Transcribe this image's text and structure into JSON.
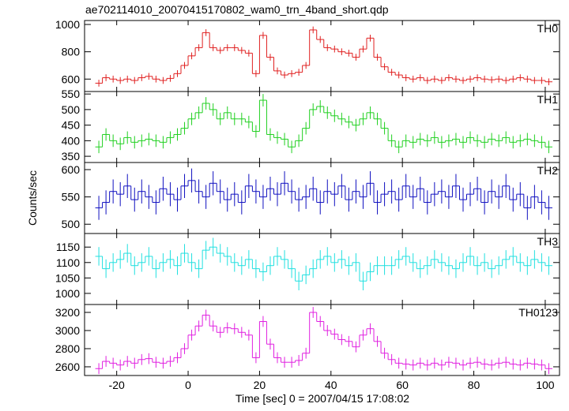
{
  "chart_data": {
    "type": "step",
    "title": "ae702114010_20070415170802_wam0_trn_4band_short.qdp",
    "ylabel": "Counts/sec",
    "xlabel": "Time [sec] 0 = 2007/04/15 17:08:02",
    "x": [
      -25,
      -23,
      -21,
      -19,
      -17,
      -15,
      -13,
      -11,
      -9,
      -7,
      -5,
      -3,
      -1,
      1,
      3,
      5,
      7,
      9,
      11,
      13,
      15,
      17,
      19,
      21,
      23,
      25,
      27,
      29,
      31,
      33,
      35,
      37,
      39,
      41,
      43,
      45,
      47,
      49,
      51,
      53,
      55,
      57,
      59,
      61,
      63,
      65,
      67,
      69,
      71,
      73,
      75,
      77,
      79,
      81,
      83,
      85,
      87,
      89,
      91,
      93,
      95,
      97,
      99,
      101
    ],
    "bin_width": 2,
    "xlim": [
      -29,
      104
    ],
    "xticks": [
      -20,
      0,
      20,
      40,
      60,
      80,
      100
    ],
    "series": [
      {
        "name": "TH0",
        "color": "#e02020",
        "error": 25,
        "ylim": [
          509,
          1029
        ],
        "yticks": [
          600,
          800,
          1000
        ],
        "values": [
          570,
          610,
          600,
          590,
          600,
          590,
          610,
          620,
          600,
          590,
          605,
          640,
          700,
          770,
          830,
          940,
          830,
          810,
          830,
          830,
          810,
          790,
          640,
          920,
          760,
          660,
          630,
          640,
          650,
          700,
          960,
          890,
          830,
          820,
          800,
          790,
          760,
          820,
          900,
          760,
          690,
          650,
          630,
          610,
          600,
          610,
          590,
          600,
          590,
          610,
          600,
          590,
          600,
          610,
          600,
          595,
          600,
          590,
          600,
          610,
          600,
          590,
          590,
          580
        ]
      },
      {
        "name": "TH1",
        "color": "#20d020",
        "error": 20,
        "ylim": [
          330,
          558
        ],
        "yticks": [
          350,
          400,
          450,
          500,
          550
        ],
        "values": [
          380,
          420,
          400,
          390,
          410,
          395,
          400,
          405,
          400,
          395,
          410,
          420,
          440,
          470,
          490,
          520,
          500,
          470,
          490,
          470,
          470,
          460,
          430,
          530,
          420,
          410,
          405,
          380,
          400,
          440,
          500,
          510,
          490,
          480,
          470,
          460,
          450,
          470,
          490,
          470,
          440,
          400,
          380,
          400,
          395,
          405,
          400,
          410,
          395,
          400,
          405,
          395,
          410,
          400,
          395,
          405,
          400,
          410,
          395,
          400,
          405,
          400,
          395,
          380
        ]
      },
      {
        "name": "TH2",
        "color": "#1010c0",
        "error": 22,
        "ylim": [
          483,
          613
        ],
        "yticks": [
          500,
          550,
          600
        ],
        "values": [
          530,
          540,
          560,
          555,
          570,
          545,
          560,
          550,
          540,
          565,
          555,
          545,
          570,
          580,
          560,
          550,
          575,
          560,
          545,
          555,
          540,
          570,
          560,
          550,
          565,
          555,
          575,
          560,
          545,
          550,
          565,
          540,
          560,
          555,
          570,
          545,
          560,
          550,
          575,
          540,
          555,
          560,
          545,
          570,
          550,
          565,
          540,
          555,
          560,
          550,
          570,
          545,
          555,
          565,
          540,
          560,
          550,
          570,
          545,
          555,
          530,
          550,
          540,
          530
        ]
      },
      {
        "name": "TH3",
        "color": "#20e0e0",
        "error": 30,
        "ylim": [
          964,
          1194
        ],
        "yticks": [
          1000,
          1050,
          1100,
          1150
        ],
        "values": [
          1120,
          1080,
          1100,
          1110,
          1130,
          1090,
          1100,
          1120,
          1080,
          1100,
          1110,
          1090,
          1130,
          1100,
          1080,
          1140,
          1150,
          1130,
          1120,
          1100,
          1090,
          1110,
          1080,
          1070,
          1090,
          1120,
          1110,
          1080,
          1040,
          1060,
          1080,
          1110,
          1120,
          1100,
          1110,
          1090,
          1100,
          1040,
          1070,
          1090,
          1090,
          1090,
          1110,
          1120,
          1100,
          1080,
          1090,
          1110,
          1100,
          1090,
          1080,
          1100,
          1120,
          1090,
          1100,
          1080,
          1090,
          1110,
          1120,
          1100,
          1090,
          1110,
          1100,
          1090
        ]
      },
      {
        "name": "TH0123",
        "color": "#e020e0",
        "error": 60,
        "ylim": [
          2504,
          3287
        ],
        "yticks": [
          2600,
          2800,
          3000,
          3200
        ],
        "values": [
          2580,
          2660,
          2640,
          2620,
          2660,
          2640,
          2680,
          2690,
          2650,
          2640,
          2660,
          2700,
          2800,
          2950,
          3050,
          3170,
          3050,
          2980,
          3030,
          3020,
          2980,
          2950,
          2700,
          3100,
          2850,
          2700,
          2650,
          2650,
          2670,
          2750,
          3200,
          3100,
          3000,
          2960,
          2900,
          2880,
          2820,
          2950,
          3020,
          2880,
          2750,
          2680,
          2640,
          2630,
          2620,
          2640,
          2620,
          2640,
          2620,
          2650,
          2640,
          2620,
          2640,
          2650,
          2630,
          2620,
          2640,
          2650,
          2630,
          2620,
          2640,
          2630,
          2620,
          2580
        ]
      }
    ]
  }
}
